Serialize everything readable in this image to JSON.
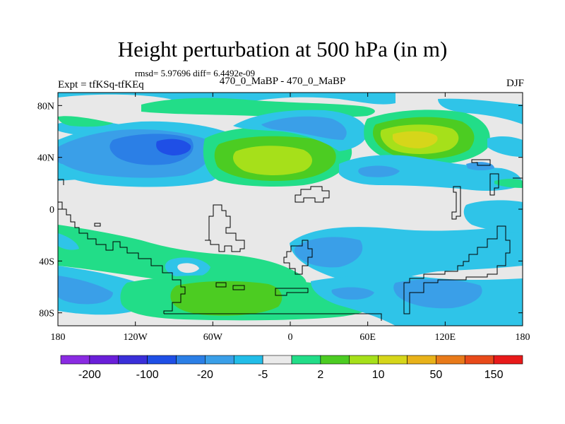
{
  "chart_data": {
    "type": "heatmap",
    "title": "Height perturbation at 500 hPa (in m)",
    "stats_text": "rmsd= 5.97696 diff= 6.4492e-09",
    "left_label": "Expt = tfKSq-tfKEq",
    "center_label": "470_0_MaBP - 470_0_MaBP",
    "right_label": "DJF",
    "x_ticks": [
      "180",
      "120W",
      "60W",
      "0",
      "60E",
      "120E",
      "180"
    ],
    "x_tick_values": [
      -180,
      -120,
      -60,
      0,
      60,
      120,
      180
    ],
    "y_ticks": [
      "80N",
      "40N",
      "0",
      "40S",
      "80S"
    ],
    "y_tick_values": [
      80,
      40,
      0,
      -40,
      -80
    ],
    "xlim": [
      -180,
      180
    ],
    "ylim": [
      -90,
      90
    ],
    "colorbar": {
      "colors": [
        "#8a2be2",
        "#6a1fd9",
        "#3a2fd9",
        "#1f4fe6",
        "#2b7fe6",
        "#3a9fe8",
        "#22bde8",
        "#eaeaea",
        "#22dd88",
        "#4ccc22",
        "#a6e01a",
        "#d6d61a",
        "#e8b21a",
        "#e87a1a",
        "#e84a1a",
        "#e81a1a"
      ],
      "labels": [
        "-200",
        "-100",
        "-20",
        "-5",
        "2",
        "10",
        "50",
        "150"
      ]
    },
    "levels": [
      -300,
      -200,
      -150,
      -100,
      -50,
      -20,
      -10,
      -5,
      -2,
      2,
      5,
      10,
      20,
      50,
      100,
      150,
      300
    ]
  }
}
